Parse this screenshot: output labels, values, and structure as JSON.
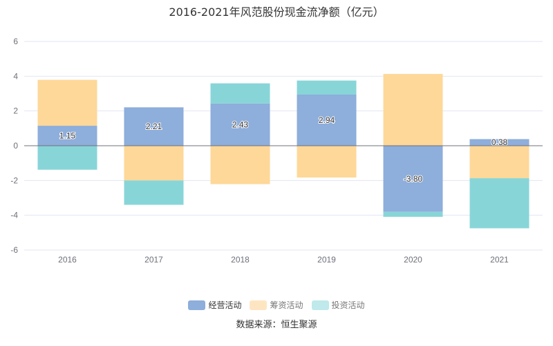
{
  "chart_data": {
    "type": "bar",
    "stacked": true,
    "title": "2016-2021年风范股份现金流净额（亿元）",
    "categories": [
      "2016",
      "2017",
      "2018",
      "2019",
      "2020",
      "2021"
    ],
    "ylim": [
      -6,
      6
    ],
    "yticks": [
      -6,
      -4,
      -2,
      0,
      2,
      4,
      6
    ],
    "grid": true,
    "legend_placement": "bottom",
    "series": [
      {
        "name": "经营活动",
        "color": "#8eaedb",
        "values": [
          1.15,
          2.21,
          2.43,
          2.94,
          -3.8,
          0.38
        ],
        "labels": [
          "1.15",
          "2.21",
          "2.43",
          "2.94",
          "-3.80",
          "0.38"
        ]
      },
      {
        "name": "筹资活动",
        "color": "#fed899",
        "values": [
          2.64,
          -2.0,
          -2.21,
          -1.83,
          4.13,
          -1.87
        ]
      },
      {
        "name": "投资活动",
        "color": "#88d5d8",
        "values": [
          -1.38,
          -1.4,
          1.16,
          0.81,
          -0.29,
          -2.88
        ]
      }
    ]
  },
  "legend_colors": [
    "#8eaedb",
    "#fee5c2",
    "#bfe9eb"
  ],
  "source": "数据来源：恒生聚源"
}
